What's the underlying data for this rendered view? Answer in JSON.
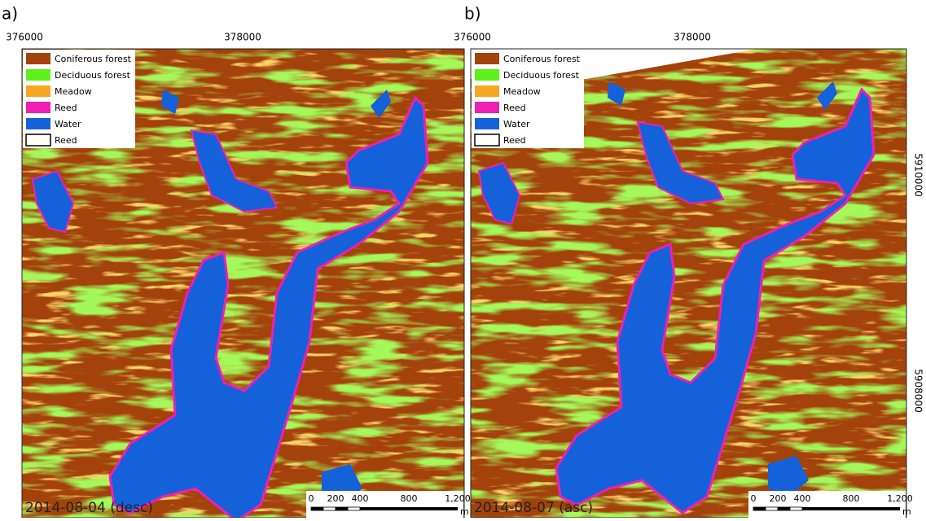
{
  "panels": [
    {
      "label": "a)",
      "x_labels": [
        "376000",
        "378000"
      ],
      "y_labels": [],
      "legend": [
        {
          "name": "Coniferous forest",
          "color": "#a3420b"
        },
        {
          "name": "Deciduous forest",
          "color": "#5ef01a"
        },
        {
          "name": "Meadow",
          "color": "#f5a623"
        },
        {
          "name": "Reed",
          "color": "#ee1fb4"
        },
        {
          "name": "Water",
          "color": "#1461d9"
        },
        {
          "name": "Reed",
          "color": "#ffffff"
        }
      ],
      "date": "2014-08-04 (desc)",
      "scale_labels": [
        "0",
        "200",
        "400",
        "800",
        "1,200"
      ],
      "scale_unit": "m"
    },
    {
      "label": "b)",
      "x_labels": [
        "376000",
        "378000"
      ],
      "y_labels": [
        "5910000",
        "5908000"
      ],
      "legend": [
        {
          "name": "Coniferous forest",
          "color": "#a3420b"
        },
        {
          "name": "Deciduous forest",
          "color": "#5ef01a"
        },
        {
          "name": "Meadow",
          "color": "#f5a623"
        },
        {
          "name": "Reed",
          "color": "#ee1fb4"
        },
        {
          "name": "Water",
          "color": "#1461d9"
        },
        {
          "name": "Reed",
          "color": "#ffffff"
        }
      ],
      "date": "2014-08-07 (asc)",
      "scale_labels": [
        "0",
        "200",
        "400",
        "800",
        "1,200"
      ],
      "scale_unit": "m"
    }
  ]
}
